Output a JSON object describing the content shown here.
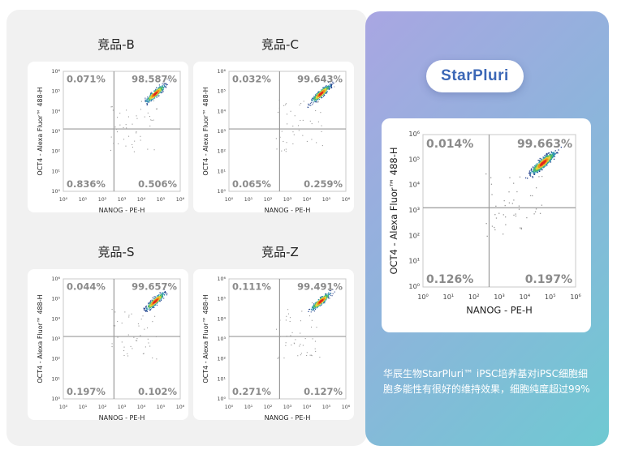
{
  "plots": [
    {
      "title": "竞品-B",
      "quadrants": {
        "ul": "0.071%",
        "ur": "98.587%",
        "ll": "0.836%",
        "lr": "0.506%"
      }
    },
    {
      "title": "竞品-C",
      "quadrants": {
        "ul": "0.032%",
        "ur": "99.643%",
        "ll": "0.065%",
        "lr": "0.259%"
      }
    },
    {
      "title": "竞品-S",
      "quadrants": {
        "ul": "0.044%",
        "ur": "99.657%",
        "ll": "0.197%",
        "lr": "0.102%"
      }
    },
    {
      "title": "竞品-Z",
      "quadrants": {
        "ul": "0.111%",
        "ur": "99.491%",
        "ll": "0.271%",
        "lr": "0.127%"
      }
    }
  ],
  "featured": {
    "brand": "StarPluri",
    "quadrants": {
      "ul": "0.014%",
      "ur": "99.663%",
      "ll": "0.126%",
      "lr": "0.197%"
    },
    "caption": "华辰生物StarPluri™ iPSC培养基对iPSC细胞细胞多能性有很好的维持效果，细胞纯度超过99%"
  },
  "chart_data": [
    {
      "type": "scatter",
      "title": "竞品-B",
      "xlabel": "NANOG - PE-H",
      "ylabel": "OCT4 - Alexa Fluor™ 488-H",
      "xlim": [
        1,
        1000000
      ],
      "ylim": [
        1,
        1000000
      ],
      "x_scale": "log",
      "y_scale": "log",
      "quadrant_percent": {
        "upper_left": 0.071,
        "upper_right": 98.587,
        "lower_left": 0.836,
        "lower_right": 0.506
      }
    },
    {
      "type": "scatter",
      "title": "竞品-C",
      "xlabel": "NANOG - PE-H",
      "ylabel": "OCT4 - Alexa Fluor™ 488-H",
      "xlim": [
        1,
        1000000
      ],
      "ylim": [
        1,
        1000000
      ],
      "x_scale": "log",
      "y_scale": "log",
      "quadrant_percent": {
        "upper_left": 0.032,
        "upper_right": 99.643,
        "lower_left": 0.065,
        "lower_right": 0.259
      }
    },
    {
      "type": "scatter",
      "title": "竞品-S",
      "xlabel": "NANOG - PE-H",
      "ylabel": "OCT4 - Alexa Fluor™ 488-H",
      "xlim": [
        1,
        1000000
      ],
      "ylim": [
        1,
        1000000
      ],
      "x_scale": "log",
      "y_scale": "log",
      "quadrant_percent": {
        "upper_left": 0.044,
        "upper_right": 99.657,
        "lower_left": 0.197,
        "lower_right": 0.102
      }
    },
    {
      "type": "scatter",
      "title": "竞品-Z",
      "xlabel": "NANOG - PE-H",
      "ylabel": "OCT4 - Alexa Fluor™ 488-H",
      "xlim": [
        1,
        1000000
      ],
      "ylim": [
        1,
        1000000
      ],
      "x_scale": "log",
      "y_scale": "log",
      "quadrant_percent": {
        "upper_left": 0.111,
        "upper_right": 99.491,
        "lower_left": 0.271,
        "lower_right": 0.127
      }
    },
    {
      "type": "scatter",
      "title": "StarPluri",
      "xlabel": "NANOG - PE-H",
      "ylabel": "OCT4 - Alexa Fluor™ 488-H",
      "xlim": [
        1,
        1000000
      ],
      "ylim": [
        1,
        1000000
      ],
      "x_scale": "log",
      "y_scale": "log",
      "quadrant_percent": {
        "upper_left": 0.014,
        "upper_right": 99.663,
        "lower_left": 0.126,
        "lower_right": 0.197
      }
    }
  ],
  "axis": {
    "xlabel": "NANOG - PE-H",
    "ylabel": "OCT4 - Alexa Fluor™ 488-H",
    "ticks": [
      "10⁰",
      "10¹",
      "10²",
      "10³",
      "10⁴",
      "10⁵",
      "10⁶"
    ]
  },
  "colors": {
    "quad_text": "#8a8a8a",
    "gate_line": "#9a9a9a",
    "brand": "#3b67b6",
    "density": [
      "#1f3f8c",
      "#2a8fb0",
      "#4cba6a",
      "#e6d23a",
      "#f08a1c",
      "#e0281c"
    ]
  }
}
